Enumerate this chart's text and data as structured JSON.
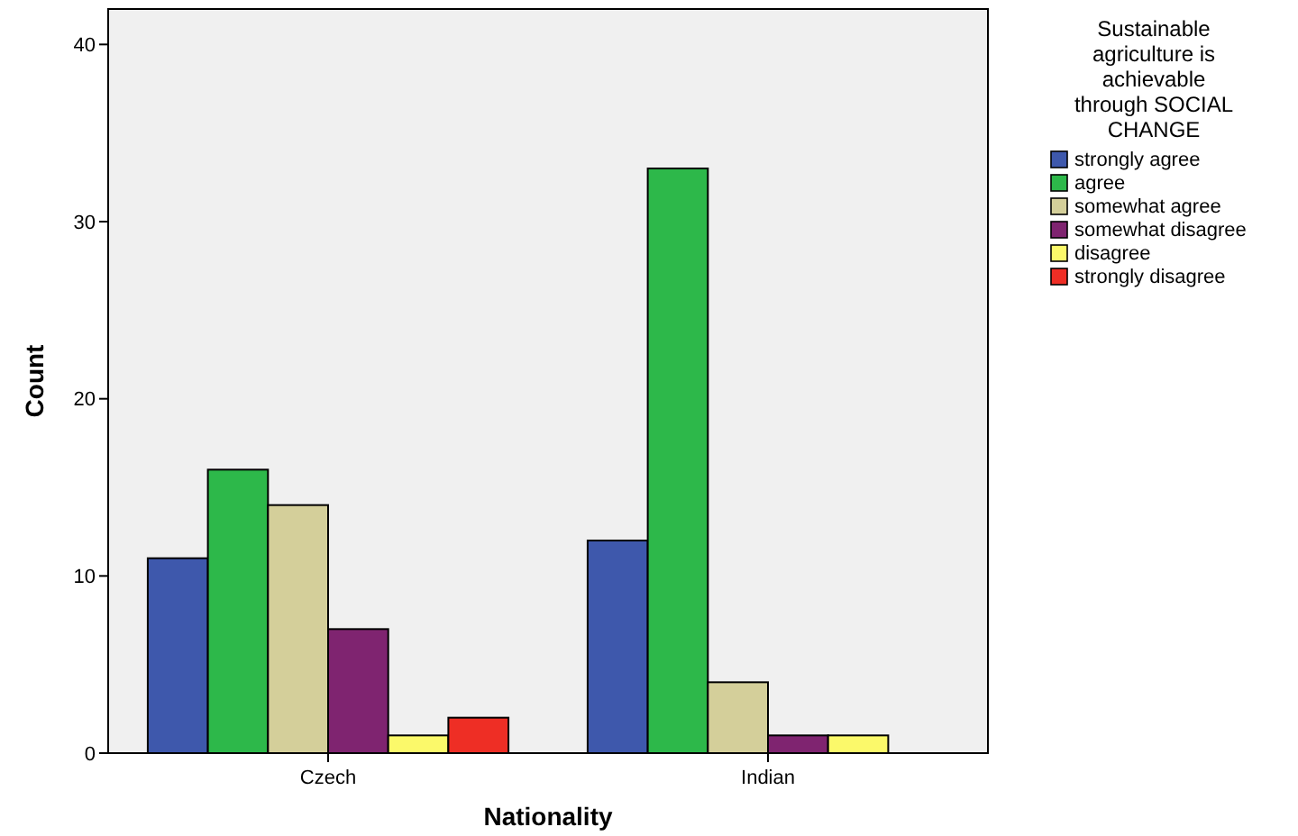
{
  "chart_data": {
    "type": "bar",
    "xlabel": "Nationality",
    "ylabel": "Count",
    "legend_title": "Sustainable agriculture is achievable through SOCIAL CHANGE",
    "legend": "right",
    "grid": false,
    "categories": [
      "Czech",
      "Indian"
    ],
    "ylim": [
      0,
      42
    ],
    "yticks": [
      0,
      10,
      20,
      30,
      40
    ],
    "series": [
      {
        "name": "strongly agree",
        "color": "#3e58ac",
        "values": [
          11,
          12
        ]
      },
      {
        "name": "agree",
        "color": "#2db84a",
        "values": [
          16,
          33
        ]
      },
      {
        "name": "somewhat agree",
        "color": "#d4cf9a",
        "values": [
          14,
          4
        ]
      },
      {
        "name": "somewhat disagree",
        "color": "#7f2470",
        "values": [
          7,
          1
        ]
      },
      {
        "name": "disagree",
        "color": "#fbf96a",
        "values": [
          1,
          1
        ]
      },
      {
        "name": "strongly disagree",
        "color": "#ee2e25",
        "values": [
          2,
          null
        ]
      }
    ]
  }
}
